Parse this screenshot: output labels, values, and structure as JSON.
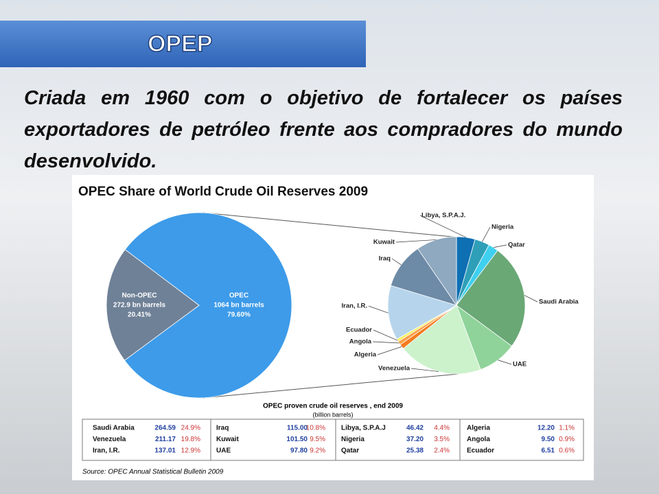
{
  "slide": {
    "title": "OPEP",
    "text": "Criada em 1960 com o objetivo de fortalecer os países exportadores de petróleo frente aos compradores do mundo desenvolvido."
  },
  "chart_data": [
    {
      "type": "pie",
      "title": "OPEC Share of World Crude Oil Reserves 2009",
      "categories": [
        "OPEC",
        "Non-OPEC"
      ],
      "values": [
        79.6,
        20.41
      ],
      "value_labels": [
        "79.60%",
        "20.41%"
      ],
      "amount_labels": [
        "1064 bn barrels",
        "272.9 bn barrels"
      ],
      "colors": [
        "#3d9be9",
        "#6f8197"
      ]
    },
    {
      "type": "pie",
      "categories": [
        "Libya, S.P.A.J.",
        "Nigeria",
        "Qatar",
        "Saudi Arabia",
        "UAE",
        "Venezuela",
        "Algeria",
        "Angola",
        "Ecuador",
        "Iran, I.R.",
        "Iraq",
        "Kuwait"
      ],
      "values": [
        46.42,
        37.2,
        25.38,
        264.59,
        97.8,
        211.17,
        12.2,
        9.5,
        6.51,
        137.01,
        115,
        101.5
      ],
      "colors": [
        "#0e6fb3",
        "#2f9fb8",
        "#3fd0ef",
        "#6aa876",
        "#8fd39a",
        "#ccf2cc",
        "#f47b20",
        "#f9a04a",
        "#f5f060",
        "#b6d5ec",
        "#6d8aa6",
        "#8ea9c0"
      ]
    }
  ],
  "table": {
    "title": "OPEC proven crude oil reserves , end 2009",
    "subtitle": "(billion barrels)",
    "groups": [
      [
        [
          "Saudi Arabia",
          "264.59",
          "24.9%"
        ],
        [
          "Venezuela",
          "211.17",
          "19.8%"
        ],
        [
          "Iran, I.R.",
          "137.01",
          "12.9%"
        ]
      ],
      [
        [
          "Iraq",
          "115.00",
          "10.8%"
        ],
        [
          "Kuwait",
          "101.50",
          "9.5%"
        ],
        [
          "UAE",
          "97.80",
          "9.2%"
        ]
      ],
      [
        [
          "Libya, S.P.A.J",
          "46.42",
          "4.4%"
        ],
        [
          "Nigeria",
          "37.20",
          "3.5%"
        ],
        [
          "Qatar",
          "25.38",
          "2.4%"
        ]
      ],
      [
        [
          "Algeria",
          "12.20",
          "1.1%"
        ],
        [
          "Angola",
          "9.50",
          "0.9%"
        ],
        [
          "Ecuador",
          "6.51",
          "0.6%"
        ]
      ]
    ]
  },
  "source": "Source: OPEC Annual Statistical Bulletin 2009"
}
